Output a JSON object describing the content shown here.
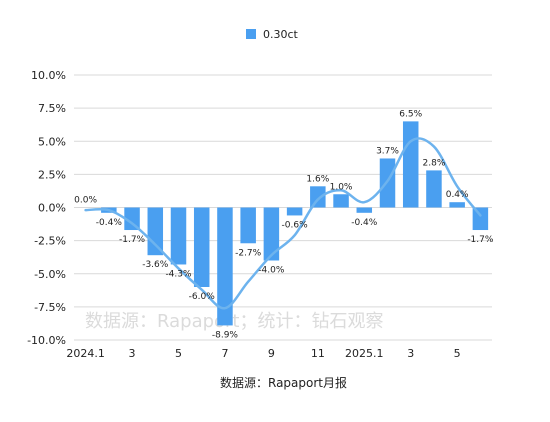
{
  "chart_data": {
    "type": "bar",
    "legend": {
      "series_name": "0.30ct",
      "position": "top",
      "color": "#4a9ff0"
    },
    "line_color": "#6db3ee",
    "ylim": [
      -10,
      10
    ],
    "y_ticks": [
      "10.0%",
      "7.5%",
      "5.0%",
      "2.5%",
      "0.0%",
      "-2.5%",
      "-5.0%",
      "-7.5%",
      "-10.0%"
    ],
    "y_tick_values": [
      10,
      7.5,
      5,
      2.5,
      0,
      -2.5,
      -5,
      -7.5,
      -10
    ],
    "x_tick_labels": [
      "2024.1",
      "",
      "3",
      "",
      "5",
      "",
      "7",
      "",
      "9",
      "",
      "11",
      "",
      "2025.1",
      "",
      "3",
      "",
      "5",
      ""
    ],
    "series": [
      {
        "name": "0.30ct",
        "values": [
          0.0,
          -0.4,
          -1.7,
          -3.6,
          -4.3,
          -6.0,
          -8.9,
          -2.7,
          -4.0,
          -0.6,
          1.6,
          1.0,
          -0.4,
          3.7,
          6.5,
          2.8,
          0.4,
          -1.7
        ],
        "labels": [
          "0.0%",
          "-0.4%",
          "-1.7%",
          "-3.6%",
          "-4.3%",
          "-6.0%",
          "-8.9%",
          "-2.7%",
          "-4.0%",
          "-0.6%",
          "1.6%",
          "1.0%",
          "-0.4%",
          "3.7%",
          "6.5%",
          "2.8%",
          "0.4%",
          "-1.7%"
        ]
      }
    ],
    "trend_line": [
      -0.2,
      -0.2,
      -1.2,
      -2.8,
      -4.6,
      -6.2,
      -7.6,
      -5.6,
      -3.6,
      -2.1,
      0.6,
      1.3,
      0.4,
      2.0,
      5.0,
      4.6,
      1.6,
      -0.6
    ]
  },
  "watermark_text": "数据源：Rapaport；统计：钻石观察",
  "source_text": "数据源：Rapaport月报"
}
